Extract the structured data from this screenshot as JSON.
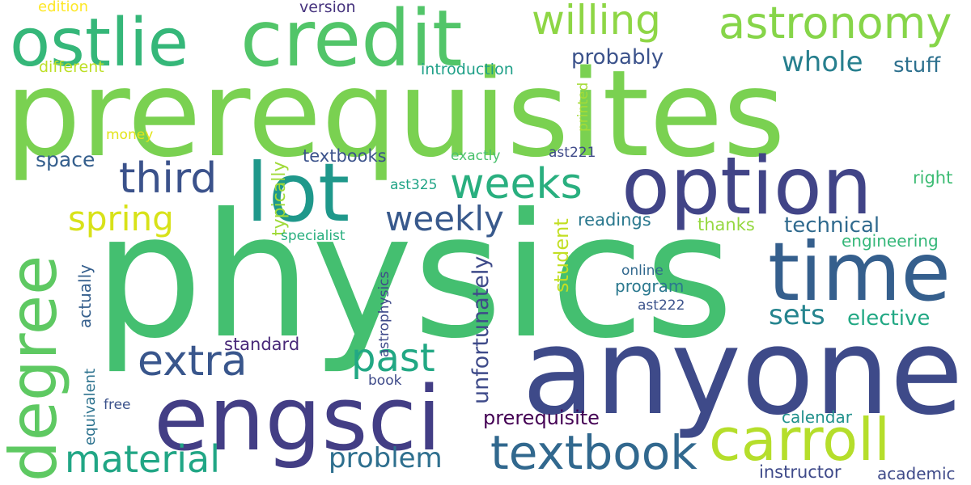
{
  "words": [
    {
      "text": "prerequisites",
      "color": "#7ad151"
    },
    {
      "text": "physics",
      "color": "#44bf70"
    },
    {
      "text": "anyone",
      "color": "#3e4a89"
    },
    {
      "text": "option",
      "color": "#414487"
    },
    {
      "text": "engsci",
      "color": "#433e85"
    },
    {
      "text": "time",
      "color": "#355f8d"
    },
    {
      "text": "credit",
      "color": "#52c569"
    },
    {
      "text": "degree",
      "color": "#5ec962"
    },
    {
      "text": "lot",
      "color": "#1f988b"
    },
    {
      "text": "ostlie",
      "color": "#35b779"
    },
    {
      "text": "carroll",
      "color": "#b5de2b"
    },
    {
      "text": "textbook",
      "color": "#31688e"
    },
    {
      "text": "astronomy",
      "color": "#86d549"
    },
    {
      "text": "willing",
      "color": "#8ed645"
    },
    {
      "text": "weeks",
      "color": "#29af7f"
    },
    {
      "text": "third",
      "color": "#3b528b"
    },
    {
      "text": "extra",
      "color": "#39568c"
    },
    {
      "text": "material",
      "color": "#21a685"
    },
    {
      "text": "past",
      "color": "#22a884"
    },
    {
      "text": "spring",
      "color": "#d8e219"
    },
    {
      "text": "weekly",
      "color": "#38598c"
    },
    {
      "text": "problem",
      "color": "#2e6f8e"
    },
    {
      "text": "sets",
      "color": "#25848e"
    },
    {
      "text": "whole",
      "color": "#277f8e"
    },
    {
      "text": "probably",
      "color": "#3b528b"
    },
    {
      "text": "stuff",
      "color": "#2d708e"
    },
    {
      "text": "technical",
      "color": "#306a8e"
    },
    {
      "text": "elective",
      "color": "#22a884"
    },
    {
      "text": "unfortunately",
      "color": "#3e4a89"
    },
    {
      "text": "prerequisite",
      "color": "#440154"
    },
    {
      "text": "typically",
      "color": "#a0da39"
    },
    {
      "text": "student",
      "color": "#c2df23"
    },
    {
      "text": "engineering",
      "color": "#35b779"
    },
    {
      "text": "program",
      "color": "#2a788e"
    },
    {
      "text": "standard",
      "color": "#482878"
    },
    {
      "text": "instructor",
      "color": "#3e4989"
    },
    {
      "text": "academic",
      "color": "#3e4a89"
    },
    {
      "text": "calendar",
      "color": "#21918c"
    },
    {
      "text": "textbooks",
      "color": "#3b528b"
    },
    {
      "text": "space",
      "color": "#355f8d"
    },
    {
      "text": "readings",
      "color": "#2a788e"
    },
    {
      "text": "thanks",
      "color": "#95d840"
    },
    {
      "text": "right",
      "color": "#3dbc74"
    },
    {
      "text": "introduction",
      "color": "#1fa088"
    },
    {
      "text": "different",
      "color": "#bddf26"
    },
    {
      "text": "edition",
      "color": "#fde725"
    },
    {
      "text": "version",
      "color": "#46337e"
    },
    {
      "text": "money",
      "color": "#e2e418"
    },
    {
      "text": "exactly",
      "color": "#4ac16d"
    },
    {
      "text": "ast221",
      "color": "#3e4989"
    },
    {
      "text": "ast325",
      "color": "#20a486"
    },
    {
      "text": "ast222",
      "color": "#3b528b"
    },
    {
      "text": "specialist",
      "color": "#29af7f"
    },
    {
      "text": "online",
      "color": "#31688e"
    },
    {
      "text": "book",
      "color": "#3e4a89"
    },
    {
      "text": "free",
      "color": "#3b528b"
    },
    {
      "text": "actually",
      "color": "#355f8d"
    },
    {
      "text": "equivalent",
      "color": "#2c728e"
    },
    {
      "text": "astrophysics",
      "color": "#3e4989"
    },
    {
      "text": "printed",
      "color": "#a5db36"
    }
  ]
}
